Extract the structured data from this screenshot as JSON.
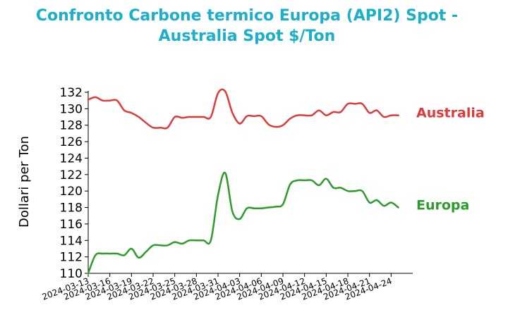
{
  "chart_data": {
    "type": "line",
    "title": "Confronto Carbone termico Europa (API2) Spot - Australia Spot $/Ton",
    "title_lines": [
      "Confronto Carbone termico Europa (API2) Spot -",
      "Australia Spot $/Ton"
    ],
    "xlabel": "",
    "ylabel": "Dollari per Ton",
    "ylim": [
      110,
      132
    ],
    "yticks": [
      110,
      112,
      114,
      116,
      118,
      120,
      122,
      124,
      126,
      128,
      130,
      132
    ],
    "xlim": [
      "2024-03-13",
      "2024-04-27"
    ],
    "xticks": [
      "2024-03-13",
      "2024-03-16",
      "2024-03-19",
      "2024-03-22",
      "2024-03-25",
      "2024-03-28",
      "2024-03-31",
      "2024-04-03",
      "2024-04-06",
      "2024-04-09",
      "2024-04-12",
      "2024-04-15",
      "2024-04-18",
      "2024-04-21",
      "2024-04-24"
    ],
    "grid": false,
    "legend": "labels at right end of lines",
    "series": [
      {
        "name": "Australia",
        "color": "#e03a3a",
        "points": [
          [
            "2024-03-13",
            131.1
          ],
          [
            "2024-03-14",
            131.4
          ],
          [
            "2024-03-15",
            131.0
          ],
          [
            "2024-03-16",
            131.0
          ],
          [
            "2024-03-17",
            131.0
          ],
          [
            "2024-03-18",
            129.8
          ],
          [
            "2024-03-19",
            129.5
          ],
          [
            "2024-03-20",
            129.0
          ],
          [
            "2024-03-21",
            128.3
          ],
          [
            "2024-03-22",
            127.7
          ],
          [
            "2024-03-23",
            127.7
          ],
          [
            "2024-03-24",
            127.7
          ],
          [
            "2024-03-25",
            129.0
          ],
          [
            "2024-03-26",
            128.9
          ],
          [
            "2024-03-27",
            129.0
          ],
          [
            "2024-03-28",
            129.0
          ],
          [
            "2024-03-29",
            129.0
          ],
          [
            "2024-03-30",
            129.0
          ],
          [
            "2024-03-31",
            131.9
          ],
          [
            "2024-04-01",
            132.1
          ],
          [
            "2024-04-02",
            129.5
          ],
          [
            "2024-04-03",
            128.2
          ],
          [
            "2024-04-04",
            129.1
          ],
          [
            "2024-04-05",
            129.1
          ],
          [
            "2024-04-06",
            129.1
          ],
          [
            "2024-04-07",
            128.1
          ],
          [
            "2024-04-08",
            127.8
          ],
          [
            "2024-04-09",
            128.0
          ],
          [
            "2024-04-10",
            128.8
          ],
          [
            "2024-04-11",
            129.2
          ],
          [
            "2024-04-12",
            129.2
          ],
          [
            "2024-04-13",
            129.2
          ],
          [
            "2024-04-14",
            129.8
          ],
          [
            "2024-04-15",
            129.2
          ],
          [
            "2024-04-16",
            129.6
          ],
          [
            "2024-04-17",
            129.6
          ],
          [
            "2024-04-18",
            130.6
          ],
          [
            "2024-04-19",
            130.6
          ],
          [
            "2024-04-20",
            130.6
          ],
          [
            "2024-04-21",
            129.5
          ],
          [
            "2024-04-22",
            129.8
          ],
          [
            "2024-04-23",
            129.0
          ],
          [
            "2024-04-24",
            129.2
          ],
          [
            "2024-04-25",
            129.2
          ]
        ]
      },
      {
        "name": "Europa",
        "color": "#2a9d2a",
        "points": [
          [
            "2024-03-13",
            110.0
          ],
          [
            "2024-03-14",
            112.2
          ],
          [
            "2024-03-15",
            112.4
          ],
          [
            "2024-03-16",
            112.4
          ],
          [
            "2024-03-17",
            112.4
          ],
          [
            "2024-03-18",
            112.2
          ],
          [
            "2024-03-19",
            113.0
          ],
          [
            "2024-03-20",
            111.9
          ],
          [
            "2024-03-21",
            112.6
          ],
          [
            "2024-03-22",
            113.4
          ],
          [
            "2024-03-23",
            113.4
          ],
          [
            "2024-03-24",
            113.4
          ],
          [
            "2024-03-25",
            113.8
          ],
          [
            "2024-03-26",
            113.6
          ],
          [
            "2024-03-27",
            114.0
          ],
          [
            "2024-03-28",
            114.0
          ],
          [
            "2024-03-29",
            114.0
          ],
          [
            "2024-03-30",
            114.0
          ],
          [
            "2024-03-31",
            119.5
          ],
          [
            "2024-04-01",
            122.2
          ],
          [
            "2024-04-02",
            117.5
          ],
          [
            "2024-04-03",
            116.6
          ],
          [
            "2024-04-04",
            117.9
          ],
          [
            "2024-04-05",
            117.9
          ],
          [
            "2024-04-06",
            117.9
          ],
          [
            "2024-04-07",
            118.0
          ],
          [
            "2024-04-08",
            118.1
          ],
          [
            "2024-04-09",
            118.4
          ],
          [
            "2024-04-10",
            120.8
          ],
          [
            "2024-04-11",
            121.3
          ],
          [
            "2024-04-12",
            121.3
          ],
          [
            "2024-04-13",
            121.3
          ],
          [
            "2024-04-14",
            120.7
          ],
          [
            "2024-04-15",
            121.5
          ],
          [
            "2024-04-16",
            120.4
          ],
          [
            "2024-04-17",
            120.4
          ],
          [
            "2024-04-18",
            120.0
          ],
          [
            "2024-04-19",
            120.0
          ],
          [
            "2024-04-20",
            120.0
          ],
          [
            "2024-04-21",
            118.6
          ],
          [
            "2024-04-22",
            118.9
          ],
          [
            "2024-04-23",
            118.2
          ],
          [
            "2024-04-24",
            118.6
          ],
          [
            "2024-04-25",
            118.0
          ]
        ]
      }
    ]
  }
}
